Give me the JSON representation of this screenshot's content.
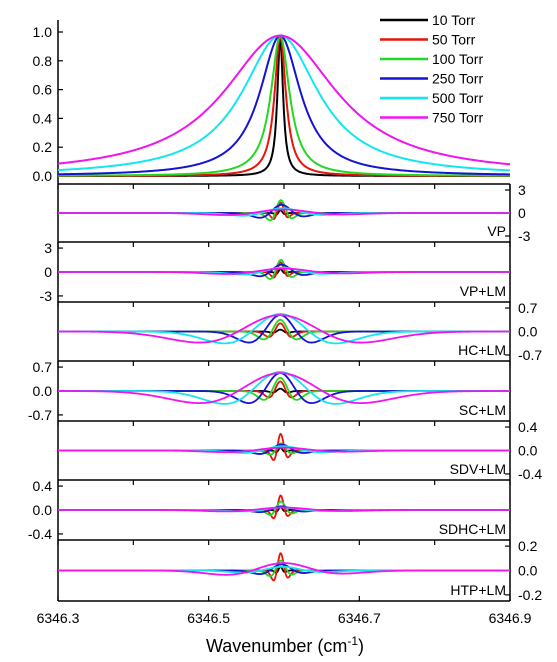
{
  "chart_data": {
    "type": "line",
    "xlabel_prefix": "Wavenumber (cm",
    "xlabel_sup": "-1",
    "xlabel_suffix": ")",
    "xlim": [
      6346.3,
      6346.9
    ],
    "x_ticks": [
      "6346.3",
      "6346.5",
      "6346.7",
      "6346.9"
    ],
    "line_center": 6346.595,
    "legend_placement": "top-right",
    "series": [
      {
        "name": "10 Torr",
        "color": "#000000",
        "hwhm": 0.0045
      },
      {
        "name": "50 Torr",
        "color": "#e8140c",
        "hwhm": 0.009
      },
      {
        "name": "100 Torr",
        "color": "#22d822",
        "hwhm": 0.015
      },
      {
        "name": "250 Torr",
        "color": "#1414d2",
        "hwhm": 0.033
      },
      {
        "name": "500 Torr",
        "color": "#14e6f0",
        "hwhm": 0.062
      },
      {
        "name": "750 Torr",
        "color": "#f014f0",
        "hwhm": 0.092
      }
    ],
    "top_panel": {
      "ylim": [
        0.0,
        1.0
      ],
      "y_ticks": [
        "0.0",
        "0.2",
        "0.4",
        "0.6",
        "0.8",
        "1.0"
      ]
    },
    "residual_panels": [
      {
        "label": "VP",
        "ylim": [
          -3,
          3
        ],
        "tick_side": "right",
        "ticks": [
          "3",
          "0",
          "-3"
        ],
        "kind": "narrow",
        "amps": [
          0.12,
          0.45,
          0.55,
          0.35,
          0.2,
          0.15
        ]
      },
      {
        "label": "VP+LM",
        "ylim": [
          -3,
          3
        ],
        "tick_side": "left",
        "ticks": [
          "3",
          "0",
          "-3"
        ],
        "kind": "narrow",
        "amps": [
          0.12,
          0.4,
          0.5,
          0.3,
          0.18,
          0.14
        ]
      },
      {
        "label": "HC+LM",
        "ylim": [
          -0.7,
          0.7
        ],
        "tick_side": "right",
        "ticks": [
          "0.7",
          "0.0",
          "-0.7"
        ],
        "kind": "wide",
        "amps": [
          0.08,
          0.35,
          0.5,
          0.7,
          0.75,
          0.7
        ]
      },
      {
        "label": "SC+LM",
        "ylim": [
          -0.7,
          0.7
        ],
        "tick_side": "left",
        "ticks": [
          "0.7",
          "0.0",
          "-0.7"
        ],
        "kind": "wide",
        "amps": [
          0.1,
          0.4,
          0.55,
          0.75,
          0.8,
          0.75
        ]
      },
      {
        "label": "SDV+LM",
        "ylim": [
          -0.4,
          0.4
        ],
        "tick_side": "right",
        "ticks": [
          "0.4",
          "0.0",
          "-0.4"
        ],
        "kind": "narrow",
        "amps": [
          0.12,
          0.7,
          0.3,
          0.25,
          0.18,
          0.12
        ]
      },
      {
        "label": "SDHC+LM",
        "ylim": [
          -0.4,
          0.4
        ],
        "tick_side": "left",
        "ticks": [
          "0.4",
          "0.0",
          "-0.4"
        ],
        "kind": "narrow",
        "amps": [
          0.12,
          0.6,
          0.35,
          0.15,
          0.1,
          0.1
        ]
      },
      {
        "label": "HTP+LM",
        "ylim": [
          -0.2,
          0.2
        ],
        "tick_side": "right",
        "ticks": [
          "0.2",
          "0.0",
          "-0.2"
        ],
        "kind": "narrow",
        "amps": [
          0.15,
          0.7,
          0.4,
          0.25,
          0.15,
          0.3
        ]
      }
    ]
  }
}
